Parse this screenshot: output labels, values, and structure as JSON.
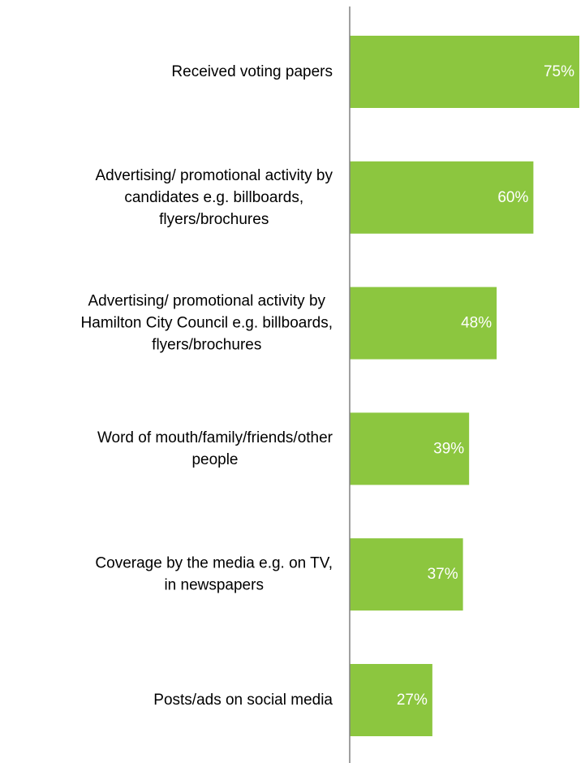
{
  "chart_data": {
    "type": "bar",
    "orientation": "horizontal",
    "categories": [
      "Received voting papers",
      "Advertising/ promotional activity by candidates e.g. billboards, flyers/brochures",
      "Advertising/ promotional activity by Hamilton City Council e.g. billboards, flyers/brochures",
      "Word of mouth/family/friends/other people",
      "Coverage by the media e.g. on TV, in newspapers",
      "Posts/ads on social media"
    ],
    "category_lines": [
      [
        "Received voting papers"
      ],
      [
        "Advertising/ promotional activity by",
        "candidates e.g. billboards,",
        "flyers/brochures"
      ],
      [
        "Advertising/ promotional activity by",
        "Hamilton City Council e.g. billboards,",
        "flyers/brochures"
      ],
      [
        "Word of mouth/family/friends/other",
        "people"
      ],
      [
        "Coverage by the media e.g. on TV,",
        "in newspapers"
      ],
      [
        "Posts/ads on social media"
      ]
    ],
    "values": [
      75,
      60,
      48,
      39,
      37,
      27
    ],
    "value_labels": [
      "75%",
      "60%",
      "48%",
      "39%",
      "37%",
      "27%"
    ],
    "xlim": [
      0,
      75
    ],
    "title": "",
    "xlabel": "",
    "ylabel": "",
    "grid": false,
    "legend": "none",
    "bar_color": "#8cc63f",
    "axis_color": "#808080",
    "label_color": "#000000",
    "value_label_color": "#ffffff"
  }
}
